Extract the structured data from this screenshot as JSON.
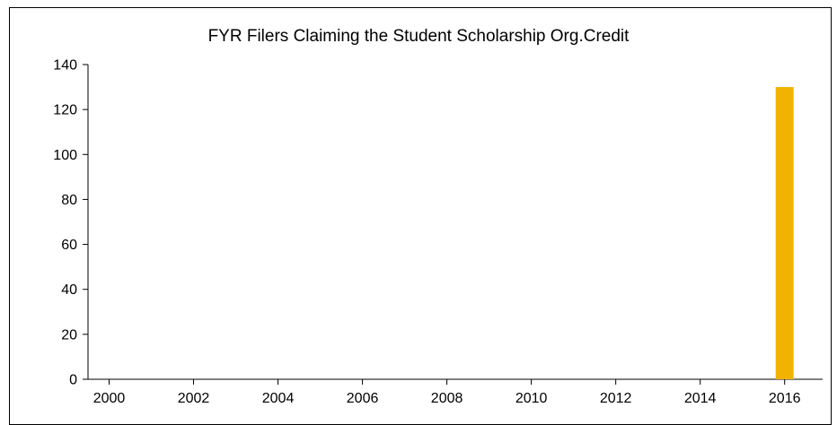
{
  "chart_data": {
    "type": "bar",
    "title": "FYR Filers Claiming the Student Scholarship Org.Credit",
    "xlabel": "",
    "ylabel": "",
    "ylim": [
      0,
      140
    ],
    "yticks": [
      0,
      20,
      40,
      60,
      80,
      100,
      120,
      140
    ],
    "xlim": [
      1999.5,
      2016.9
    ],
    "xticks": [
      2000,
      2002,
      2004,
      2006,
      2008,
      2010,
      2012,
      2014,
      2016
    ],
    "x": [
      2016
    ],
    "values": [
      130
    ],
    "bar_color": "#F2B200",
    "grid": false,
    "legend": "none"
  }
}
